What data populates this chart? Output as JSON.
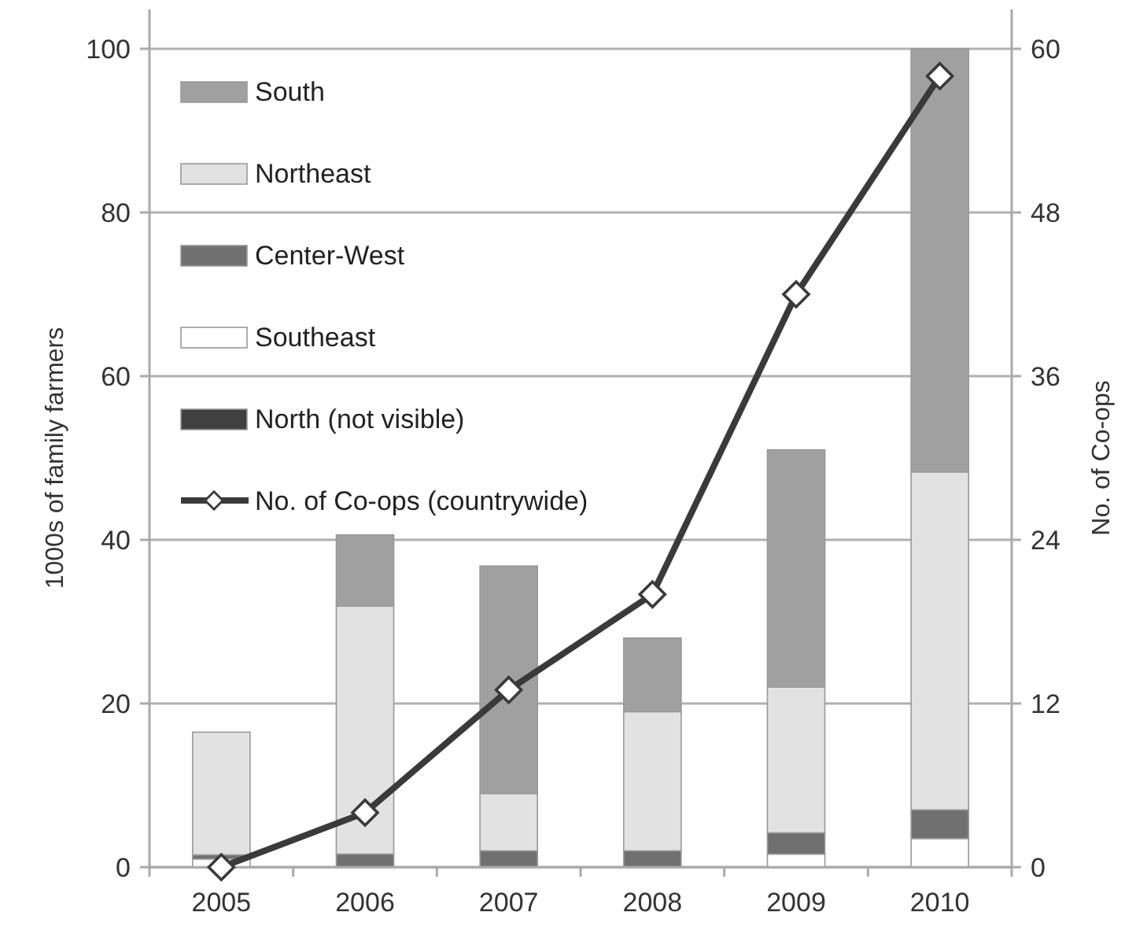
{
  "chart_data": {
    "type": "bar",
    "stacked": true,
    "ylabel": "1000s of family farmers",
    "y2label": "No. of Co-ops",
    "categories": [
      "2005",
      "2006",
      "2007",
      "2008",
      "2009",
      "2010"
    ],
    "series": [
      {
        "name": "North (not visible)",
        "color": "#404040",
        "values": [
          0,
          0,
          0,
          0,
          0,
          0
        ]
      },
      {
        "name": "Southeast",
        "color": "#ffffff",
        "values": [
          1,
          0,
          0,
          0,
          1.6,
          3.5
        ]
      },
      {
        "name": "Center-West",
        "color": "#707070",
        "values": [
          0.5,
          1.6,
          2,
          2,
          2.6,
          3.5
        ]
      },
      {
        "name": "Northeast",
        "color": "#e2e2e2",
        "values": [
          15,
          30.3,
          7,
          17,
          17.8,
          41.3
        ]
      },
      {
        "name": "South",
        "color": "#a0a0a0",
        "values": [
          0,
          8.7,
          27.8,
          9,
          29,
          51.7
        ]
      },
      {
        "name": "No. of Co-ops (countrywide)",
        "type": "line",
        "axis": "y2",
        "marker": "diamond",
        "color": "#3a3a3a",
        "values": [
          0,
          4,
          13,
          20,
          42,
          58
        ]
      }
    ],
    "ylim": [
      0,
      100
    ],
    "yticks": [
      0,
      20,
      40,
      60,
      80,
      100
    ],
    "y2lim": [
      0,
      60
    ],
    "y2ticks": [
      0,
      12,
      24,
      36,
      48,
      60
    ],
    "grid": "y",
    "legend": "top left"
  }
}
